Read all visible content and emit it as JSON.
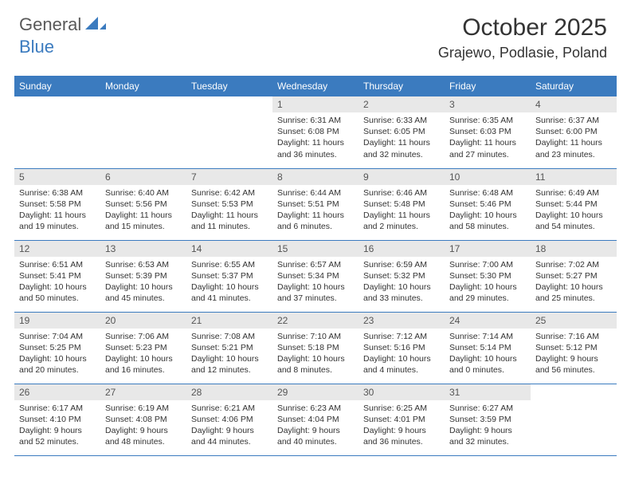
{
  "brand": {
    "general": "General",
    "blue": "Blue"
  },
  "title": {
    "month": "October 2025",
    "location": "Grajewo, Podlasie, Poland"
  },
  "colors": {
    "header_bg": "#3b7bbf",
    "header_text": "#ffffff",
    "daynum_bg": "#e8e8e8",
    "border": "#3b7bbf",
    "page_bg": "#ffffff",
    "text": "#333333",
    "logo_gray": "#595959",
    "logo_blue": "#3b7bbf"
  },
  "day_headers": [
    "Sunday",
    "Monday",
    "Tuesday",
    "Wednesday",
    "Thursday",
    "Friday",
    "Saturday"
  ],
  "weeks": [
    [
      null,
      null,
      null,
      {
        "n": "1",
        "sr": "6:31 AM",
        "ss": "6:08 PM",
        "dl": "11 hours and 36 minutes."
      },
      {
        "n": "2",
        "sr": "6:33 AM",
        "ss": "6:05 PM",
        "dl": "11 hours and 32 minutes."
      },
      {
        "n": "3",
        "sr": "6:35 AM",
        "ss": "6:03 PM",
        "dl": "11 hours and 27 minutes."
      },
      {
        "n": "4",
        "sr": "6:37 AM",
        "ss": "6:00 PM",
        "dl": "11 hours and 23 minutes."
      }
    ],
    [
      {
        "n": "5",
        "sr": "6:38 AM",
        "ss": "5:58 PM",
        "dl": "11 hours and 19 minutes."
      },
      {
        "n": "6",
        "sr": "6:40 AM",
        "ss": "5:56 PM",
        "dl": "11 hours and 15 minutes."
      },
      {
        "n": "7",
        "sr": "6:42 AM",
        "ss": "5:53 PM",
        "dl": "11 hours and 11 minutes."
      },
      {
        "n": "8",
        "sr": "6:44 AM",
        "ss": "5:51 PM",
        "dl": "11 hours and 6 minutes."
      },
      {
        "n": "9",
        "sr": "6:46 AM",
        "ss": "5:48 PM",
        "dl": "11 hours and 2 minutes."
      },
      {
        "n": "10",
        "sr": "6:48 AM",
        "ss": "5:46 PM",
        "dl": "10 hours and 58 minutes."
      },
      {
        "n": "11",
        "sr": "6:49 AM",
        "ss": "5:44 PM",
        "dl": "10 hours and 54 minutes."
      }
    ],
    [
      {
        "n": "12",
        "sr": "6:51 AM",
        "ss": "5:41 PM",
        "dl": "10 hours and 50 minutes."
      },
      {
        "n": "13",
        "sr": "6:53 AM",
        "ss": "5:39 PM",
        "dl": "10 hours and 45 minutes."
      },
      {
        "n": "14",
        "sr": "6:55 AM",
        "ss": "5:37 PM",
        "dl": "10 hours and 41 minutes."
      },
      {
        "n": "15",
        "sr": "6:57 AM",
        "ss": "5:34 PM",
        "dl": "10 hours and 37 minutes."
      },
      {
        "n": "16",
        "sr": "6:59 AM",
        "ss": "5:32 PM",
        "dl": "10 hours and 33 minutes."
      },
      {
        "n": "17",
        "sr": "7:00 AM",
        "ss": "5:30 PM",
        "dl": "10 hours and 29 minutes."
      },
      {
        "n": "18",
        "sr": "7:02 AM",
        "ss": "5:27 PM",
        "dl": "10 hours and 25 minutes."
      }
    ],
    [
      {
        "n": "19",
        "sr": "7:04 AM",
        "ss": "5:25 PM",
        "dl": "10 hours and 20 minutes."
      },
      {
        "n": "20",
        "sr": "7:06 AM",
        "ss": "5:23 PM",
        "dl": "10 hours and 16 minutes."
      },
      {
        "n": "21",
        "sr": "7:08 AM",
        "ss": "5:21 PM",
        "dl": "10 hours and 12 minutes."
      },
      {
        "n": "22",
        "sr": "7:10 AM",
        "ss": "5:18 PM",
        "dl": "10 hours and 8 minutes."
      },
      {
        "n": "23",
        "sr": "7:12 AM",
        "ss": "5:16 PM",
        "dl": "10 hours and 4 minutes."
      },
      {
        "n": "24",
        "sr": "7:14 AM",
        "ss": "5:14 PM",
        "dl": "10 hours and 0 minutes."
      },
      {
        "n": "25",
        "sr": "7:16 AM",
        "ss": "5:12 PM",
        "dl": "9 hours and 56 minutes."
      }
    ],
    [
      {
        "n": "26",
        "sr": "6:17 AM",
        "ss": "4:10 PM",
        "dl": "9 hours and 52 minutes."
      },
      {
        "n": "27",
        "sr": "6:19 AM",
        "ss": "4:08 PM",
        "dl": "9 hours and 48 minutes."
      },
      {
        "n": "28",
        "sr": "6:21 AM",
        "ss": "4:06 PM",
        "dl": "9 hours and 44 minutes."
      },
      {
        "n": "29",
        "sr": "6:23 AM",
        "ss": "4:04 PM",
        "dl": "9 hours and 40 minutes."
      },
      {
        "n": "30",
        "sr": "6:25 AM",
        "ss": "4:01 PM",
        "dl": "9 hours and 36 minutes."
      },
      {
        "n": "31",
        "sr": "6:27 AM",
        "ss": "3:59 PM",
        "dl": "9 hours and 32 minutes."
      },
      null
    ]
  ],
  "labels": {
    "sunrise": "Sunrise:",
    "sunset": "Sunset:",
    "daylight": "Daylight:"
  }
}
